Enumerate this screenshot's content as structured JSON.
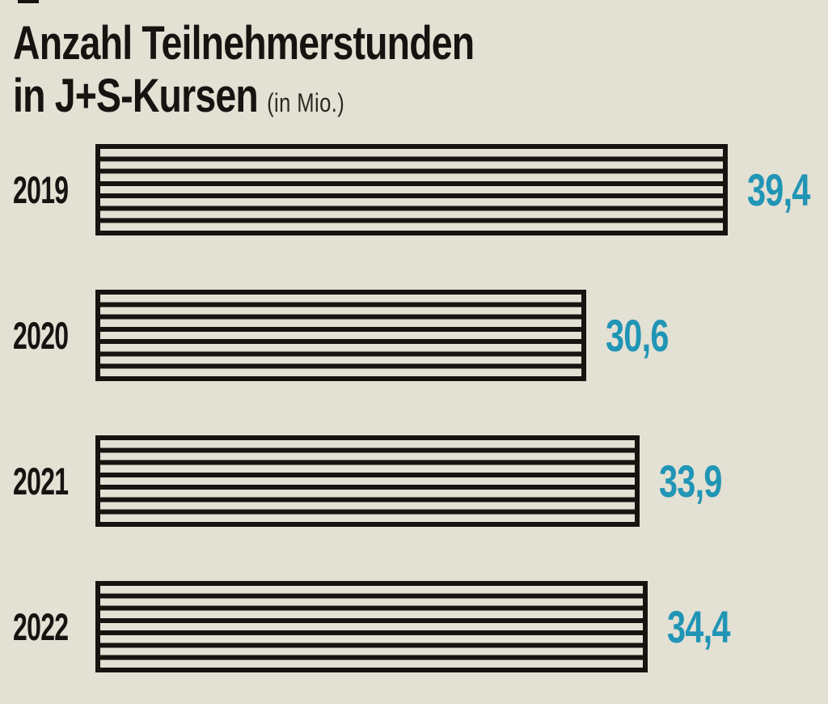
{
  "page": {
    "background_color": "#e3e0d4",
    "ink_color": "#161310",
    "accent_color": "#2095b5"
  },
  "title": {
    "line1": "Anzahl Teilnehmerstunden",
    "line2": "in J+S-Kursen",
    "unit": "(in Mio.)"
  },
  "chart_data": {
    "type": "bar",
    "orientation": "horizontal",
    "title": "Anzahl Teilnehmerstunden in J+S-Kursen",
    "unit": "in Mio.",
    "categories": [
      "2019",
      "2020",
      "2021",
      "2022"
    ],
    "values": [
      39.4,
      30.6,
      33.9,
      34.4
    ],
    "display_values": [
      "39,4",
      "30,6",
      "33,9",
      "34,4"
    ],
    "xlim": [
      0,
      39.4
    ],
    "grid": false,
    "legend": false,
    "bar_style": "black-outline-horizontal-stripes",
    "value_label_position": "right-of-bar",
    "value_label_color": "#2095b5",
    "bar_line_color": "#161310"
  }
}
